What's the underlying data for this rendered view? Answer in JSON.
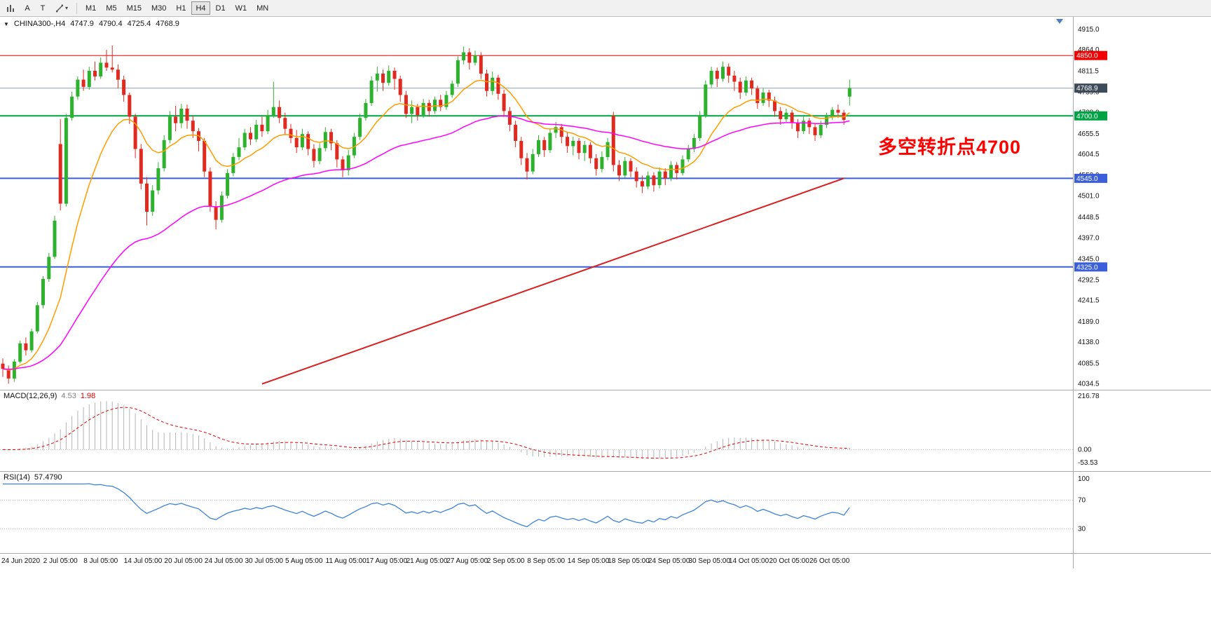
{
  "toolbar": {
    "tools": {
      "a_label": "A",
      "t_label": "T"
    },
    "timeframes": [
      "M1",
      "M5",
      "M15",
      "M30",
      "H1",
      "H4",
      "D1",
      "W1",
      "MN"
    ],
    "active_timeframe": "H4"
  },
  "header": {
    "symbol": "CHINA300-,H4",
    "open": "4747.9",
    "high": "4790.4",
    "low": "4725.4",
    "close": "4768.9"
  },
  "chart_data": {
    "type": "candlestick",
    "title": "CHINA300-,H4",
    "symbol": "CHINA300-",
    "timeframe": "H4",
    "bull_color": "#2db22d",
    "bear_color": "#e02a20",
    "y_range": [
      4020,
      4946
    ],
    "y_ticks": [
      "4915.0",
      "4864.0",
      "4811.5",
      "4759.0",
      "4708.0",
      "4655.5",
      "4604.5",
      "4553.0",
      "4501.0",
      "4448.5",
      "4397.0",
      "4345.0",
      "4292.5",
      "4241.5",
      "4189.0",
      "4138.0",
      "4085.5",
      "4034.5"
    ],
    "levels": [
      {
        "price": 4850.0,
        "label": "4850.0",
        "color": "#f00000",
        "tag_bg": "#f00000",
        "width": 1,
        "role": "resistance-line"
      },
      {
        "price": 4768.9,
        "label": "4768.9",
        "color": "#8ca0b4",
        "tag_bg": "#3d4a57",
        "width": 1,
        "role": "current-price-line"
      },
      {
        "price": 4700.0,
        "label": "4700.0",
        "color": "#00a344",
        "tag_bg": "#00a344",
        "width": 2,
        "role": "support-line"
      },
      {
        "price": 4545.0,
        "label": "4545.0",
        "color": "#3a5fd9",
        "tag_bg": "#3a5fd9",
        "width": 2,
        "role": "support-line"
      },
      {
        "price": 4325.0,
        "label": "4325.0",
        "color": "#3a5fd9",
        "tag_bg": "#3a5fd9",
        "width": 2,
        "role": "support-line"
      }
    ],
    "trendline": {
      "from_index": 45,
      "from_price": 4034.5,
      "to_index": 146,
      "to_price": 4545.0,
      "color": "#d81f1f",
      "width": 2
    },
    "moving_averages": [
      {
        "period": 13,
        "method": "ema",
        "color": "#ff9d00"
      },
      {
        "period": 50,
        "method": "ema",
        "color": "#ff00ff"
      }
    ],
    "annotation": {
      "text": "多空转折点4700",
      "color": "#ff0000"
    },
    "x_labels": [
      {
        "index": 0,
        "label": "24 Jun 2020"
      },
      {
        "index": 8,
        "label": "2 Jul 05:00"
      },
      {
        "index": 15,
        "label": "8 Jul 05:00"
      },
      {
        "index": 22,
        "label": "14 Jul 05:00"
      },
      {
        "index": 29,
        "label": "20 Jul 05:00"
      },
      {
        "index": 36,
        "label": "24 Jul 05:00"
      },
      {
        "index": 43,
        "label": "30 Jul 05:00"
      },
      {
        "index": 50,
        "label": "5 Aug 05:00"
      },
      {
        "index": 57,
        "label": "11 Aug 05:00"
      },
      {
        "index": 64,
        "label": "17 Aug 05:00"
      },
      {
        "index": 71,
        "label": "21 Aug 05:00"
      },
      {
        "index": 78,
        "label": "27 Aug 05:00"
      },
      {
        "index": 85,
        "label": "2 Sep 05:00"
      },
      {
        "index": 92,
        "label": "8 Sep 05:00"
      },
      {
        "index": 99,
        "label": "14 Sep 05:00"
      },
      {
        "index": 106,
        "label": "18 Sep 05:00"
      },
      {
        "index": 113,
        "label": "24 Sep 05:00"
      },
      {
        "index": 120,
        "label": "30 Sep 05:00"
      },
      {
        "index": 127,
        "label": "14 Oct 05:00"
      },
      {
        "index": 134,
        "label": "20 Oct 05:00"
      },
      {
        "index": 141,
        "label": "26 Oct 05:00"
      }
    ],
    "candles": [
      [
        4085,
        4098,
        4052,
        4072
      ],
      [
        4072,
        4080,
        4035,
        4048
      ],
      [
        4048,
        4096,
        4040,
        4090
      ],
      [
        4090,
        4142,
        4085,
        4135
      ],
      [
        4135,
        4150,
        4105,
        4118
      ],
      [
        4118,
        4172,
        4112,
        4165
      ],
      [
        4165,
        4238,
        4160,
        4230
      ],
      [
        4230,
        4302,
        4222,
        4295
      ],
      [
        4295,
        4360,
        4288,
        4350
      ],
      [
        4350,
        4452,
        4345,
        4440
      ],
      [
        4630,
        4692,
        4465,
        4482
      ],
      [
        4482,
        4705,
        4475,
        4695
      ],
      [
        4695,
        4760,
        4688,
        4748
      ],
      [
        4748,
        4798,
        4740,
        4790
      ],
      [
        4790,
        4815,
        4762,
        4772
      ],
      [
        4772,
        4822,
        4765,
        4812
      ],
      [
        4812,
        4835,
        4788,
        4798
      ],
      [
        4798,
        4845,
        4792,
        4832
      ],
      [
        4832,
        4864,
        4812,
        4820
      ],
      [
        4820,
        4875,
        4808,
        4815
      ],
      [
        4815,
        4828,
        4768,
        4790
      ],
      [
        4790,
        4800,
        4735,
        4752
      ],
      [
        4752,
        4758,
        4680,
        4698
      ],
      [
        4698,
        4705,
        4595,
        4618
      ],
      [
        4618,
        4630,
        4518,
        4532
      ],
      [
        4532,
        4548,
        4428,
        4462
      ],
      [
        4462,
        4528,
        4452,
        4515
      ],
      [
        4515,
        4585,
        4505,
        4570
      ],
      [
        4570,
        4652,
        4562,
        4640
      ],
      [
        4640,
        4712,
        4632,
        4698
      ],
      [
        4698,
        4725,
        4662,
        4682
      ],
      [
        4682,
        4730,
        4670,
        4718
      ],
      [
        4718,
        4728,
        4668,
        4688
      ],
      [
        4688,
        4700,
        4645,
        4662
      ],
      [
        4662,
        4670,
        4612,
        4638
      ],
      [
        4638,
        4645,
        4548,
        4562
      ],
      [
        4562,
        4572,
        4462,
        4475
      ],
      [
        4475,
        4488,
        4418,
        4442
      ],
      [
        4442,
        4512,
        4435,
        4502
      ],
      [
        4502,
        4568,
        4495,
        4558
      ],
      [
        4558,
        4608,
        4550,
        4598
      ],
      [
        4598,
        4645,
        4590,
        4622
      ],
      [
        4622,
        4668,
        4615,
        4658
      ],
      [
        4658,
        4672,
        4628,
        4642
      ],
      [
        4642,
        4690,
        4635,
        4678
      ],
      [
        4678,
        4698,
        4648,
        4662
      ],
      [
        4662,
        4715,
        4655,
        4702
      ],
      [
        4702,
        4785,
        4695,
        4722
      ],
      [
        4722,
        4738,
        4682,
        4695
      ],
      [
        4695,
        4708,
        4652,
        4668
      ],
      [
        4668,
        4680,
        4632,
        4645
      ],
      [
        4645,
        4665,
        4608,
        4622
      ],
      [
        4622,
        4668,
        4615,
        4655
      ],
      [
        4655,
        4662,
        4602,
        4618
      ],
      [
        4618,
        4630,
        4572,
        4588
      ],
      [
        4588,
        4632,
        4580,
        4620
      ],
      [
        4620,
        4672,
        4612,
        4660
      ],
      [
        4660,
        4668,
        4615,
        4632
      ],
      [
        4632,
        4640,
        4572,
        4592
      ],
      [
        4592,
        4600,
        4548,
        4565
      ],
      [
        4565,
        4615,
        4552,
        4602
      ],
      [
        4602,
        4658,
        4595,
        4648
      ],
      [
        4648,
        4705,
        4640,
        4695
      ],
      [
        4695,
        4742,
        4688,
        4732
      ],
      [
        4732,
        4798,
        4725,
        4788
      ],
      [
        4788,
        4822,
        4760,
        4805
      ],
      [
        4805,
        4815,
        4762,
        4782
      ],
      [
        4782,
        4825,
        4775,
        4812
      ],
      [
        4812,
        4820,
        4765,
        4792
      ],
      [
        4792,
        4800,
        4735,
        4752
      ],
      [
        4752,
        4762,
        4695,
        4705
      ],
      [
        4705,
        4738,
        4682,
        4722
      ],
      [
        4722,
        4730,
        4688,
        4702
      ],
      [
        4702,
        4742,
        4695,
        4732
      ],
      [
        4732,
        4740,
        4698,
        4712
      ],
      [
        4712,
        4748,
        4705,
        4740
      ],
      [
        4740,
        4752,
        4712,
        4722
      ],
      [
        4722,
        4762,
        4715,
        4752
      ],
      [
        4752,
        4788,
        4745,
        4780
      ],
      [
        4780,
        4848,
        4772,
        4838
      ],
      [
        4838,
        4872,
        4828,
        4858
      ],
      [
        4858,
        4868,
        4815,
        4832
      ],
      [
        4832,
        4862,
        4825,
        4850
      ],
      [
        4850,
        4858,
        4792,
        4805
      ],
      [
        4805,
        4815,
        4748,
        4762
      ],
      [
        4762,
        4810,
        4752,
        4795
      ],
      [
        4795,
        4802,
        4740,
        4755
      ],
      [
        4755,
        4765,
        4698,
        4712
      ],
      [
        4712,
        4722,
        4662,
        4678
      ],
      [
        4678,
        4688,
        4622,
        4638
      ],
      [
        4638,
        4648,
        4578,
        4595
      ],
      [
        4595,
        4608,
        4542,
        4562
      ],
      [
        4562,
        4618,
        4555,
        4605
      ],
      [
        4605,
        4652,
        4598,
        4640
      ],
      [
        4640,
        4648,
        4598,
        4615
      ],
      [
        4615,
        4668,
        4608,
        4658
      ],
      [
        4658,
        4685,
        4645,
        4672
      ],
      [
        4672,
        4680,
        4632,
        4648
      ],
      [
        4648,
        4658,
        4608,
        4625
      ],
      [
        4625,
        4648,
        4602,
        4638
      ],
      [
        4638,
        4645,
        4592,
        4608
      ],
      [
        4608,
        4638,
        4588,
        4628
      ],
      [
        4628,
        4635,
        4582,
        4595
      ],
      [
        4595,
        4605,
        4552,
        4568
      ],
      [
        4568,
        4612,
        4560,
        4598
      ],
      [
        4598,
        4645,
        4590,
        4635
      ],
      [
        4700,
        4710,
        4562,
        4578
      ],
      [
        4578,
        4590,
        4538,
        4552
      ],
      [
        4552,
        4598,
        4545,
        4588
      ],
      [
        4588,
        4595,
        4548,
        4562
      ],
      [
        4562,
        4572,
        4522,
        4538
      ],
      [
        4538,
        4552,
        4508,
        4525
      ],
      [
        4525,
        4562,
        4518,
        4552
      ],
      [
        4552,
        4560,
        4512,
        4528
      ],
      [
        4528,
        4572,
        4520,
        4562
      ],
      [
        4562,
        4570,
        4528,
        4545
      ],
      [
        4545,
        4588,
        4538,
        4578
      ],
      [
        4578,
        4585,
        4542,
        4558
      ],
      [
        4558,
        4602,
        4552,
        4592
      ],
      [
        4592,
        4628,
        4585,
        4618
      ],
      [
        4618,
        4655,
        4610,
        4645
      ],
      [
        4645,
        4712,
        4638,
        4702
      ],
      [
        4702,
        4788,
        4695,
        4778
      ],
      [
        4778,
        4822,
        4770,
        4812
      ],
      [
        4812,
        4820,
        4772,
        4792
      ],
      [
        4792,
        4835,
        4785,
        4822
      ],
      [
        4822,
        4830,
        4782,
        4800
      ],
      [
        4800,
        4812,
        4762,
        4785
      ],
      [
        4785,
        4795,
        4742,
        4758
      ],
      [
        4758,
        4798,
        4750,
        4788
      ],
      [
        4788,
        4795,
        4752,
        4768
      ],
      [
        4768,
        4775,
        4718,
        4732
      ],
      [
        4732,
        4768,
        4725,
        4758
      ],
      [
        4758,
        4765,
        4722,
        4738
      ],
      [
        4738,
        4748,
        4698,
        4712
      ],
      [
        4712,
        4722,
        4678,
        4692
      ],
      [
        4692,
        4718,
        4685,
        4708
      ],
      [
        4708,
        4715,
        4668,
        4682
      ],
      [
        4682,
        4692,
        4645,
        4662
      ],
      [
        4662,
        4698,
        4655,
        4688
      ],
      [
        4688,
        4695,
        4655,
        4672
      ],
      [
        4672,
        4682,
        4638,
        4652
      ],
      [
        4652,
        4688,
        4645,
        4678
      ],
      [
        4678,
        4708,
        4670,
        4698
      ],
      [
        4698,
        4722,
        4690,
        4715
      ],
      [
        4715,
        4728,
        4695,
        4708
      ],
      [
        4708,
        4715,
        4678,
        4690
      ],
      [
        4747.9,
        4790.4,
        4725.4,
        4768.9
      ]
    ],
    "indicators": {
      "macd": {
        "title": "MACD(12,26,9)",
        "value_main": "4.53",
        "value_signal": "1.98",
        "fast": 12,
        "slow": 26,
        "signal": 9,
        "histogram_color": "#b4b4b4",
        "signal_color": "#e60000",
        "scale_labels": [
          {
            "v": 216.78,
            "label": "216.78"
          },
          {
            "v": 0,
            "label": "0.00"
          },
          {
            "v": -53.53,
            "label": "-53.53"
          }
        ]
      },
      "rsi": {
        "title": "RSI(14)",
        "value": "57.4790",
        "period": 14,
        "line_color": "#3e83d8",
        "levels": [
          {
            "v": 100,
            "label": "100"
          },
          {
            "v": 70,
            "label": "70"
          },
          {
            "v": 30,
            "label": "30"
          }
        ]
      }
    }
  }
}
